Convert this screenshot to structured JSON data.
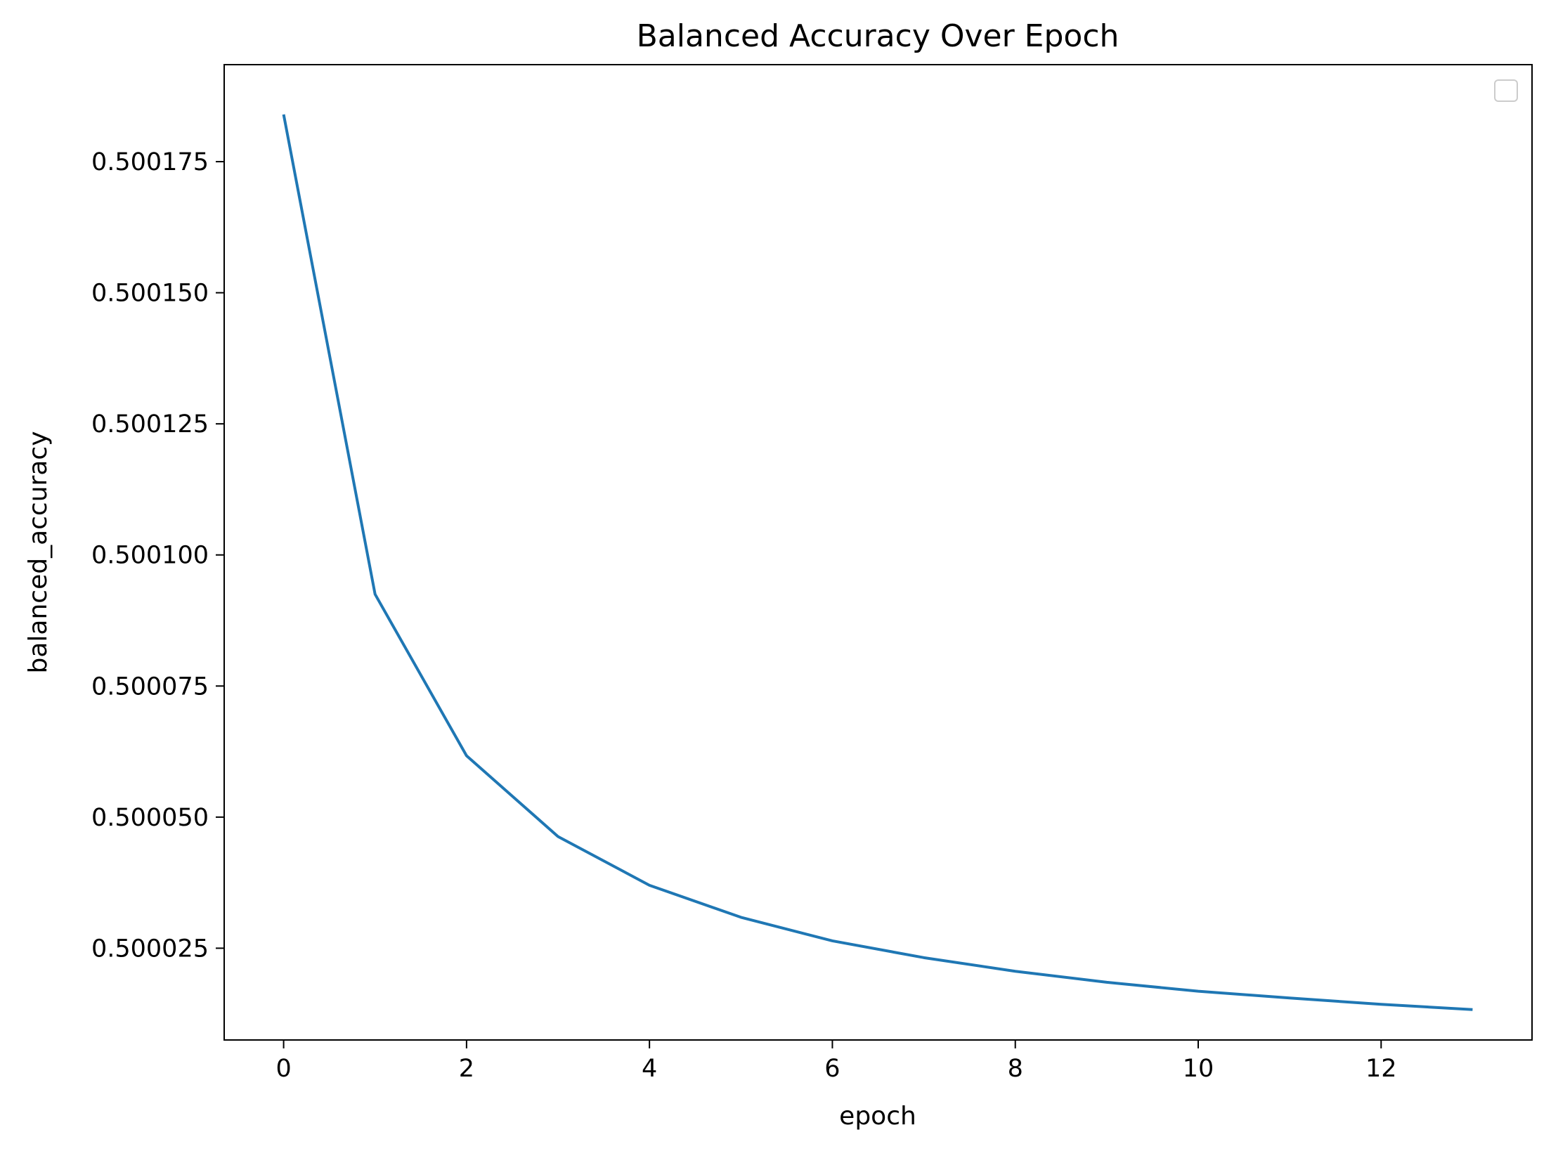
{
  "chart_data": {
    "type": "line",
    "title": "Balanced Accuracy Over Epoch",
    "xlabel": "epoch",
    "ylabel": "balanced_accuracy",
    "xlim": [
      -0.65,
      13.65
    ],
    "ylim": [
      0.5000075,
      0.5001935
    ],
    "x_ticks": [
      0,
      2,
      4,
      6,
      8,
      10,
      12
    ],
    "x_tick_labels": [
      "0",
      "2",
      "4",
      "6",
      "8",
      "10",
      "12"
    ],
    "y_ticks": [
      0.500025,
      0.50005,
      0.500075,
      0.5001,
      0.500125,
      0.50015,
      0.500175
    ],
    "y_tick_labels": [
      "0.500025",
      "0.500050",
      "0.500075",
      "0.500100",
      "0.500125",
      "0.500150",
      "0.500175"
    ],
    "grid": false,
    "legend": "upper right (empty)",
    "series": [
      {
        "color": "#1f77b4",
        "x": [
          0,
          1,
          2,
          3,
          4,
          5,
          6,
          7,
          8,
          9,
          10,
          11,
          12,
          13
        ],
        "y": [
          0.500184,
          0.5000925,
          0.5000617,
          0.5000463,
          0.500037,
          0.5000309,
          0.5000264,
          0.5000232,
          0.5000206,
          0.5000185,
          0.5000168,
          0.5000155,
          0.5000143,
          0.5000133
        ]
      }
    ]
  }
}
